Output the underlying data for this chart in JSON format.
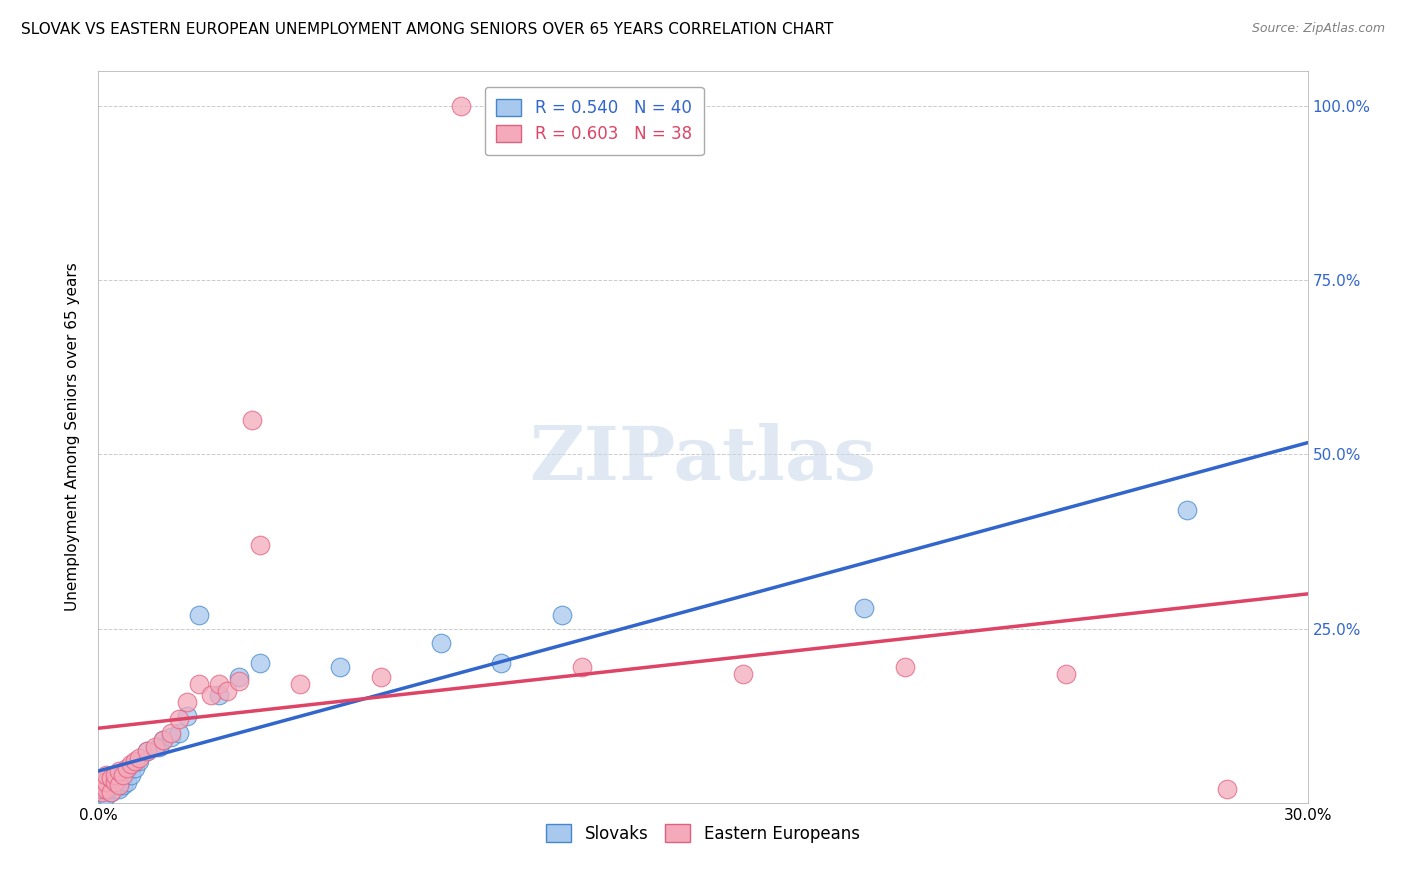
{
  "title": "SLOVAK VS EASTERN EUROPEAN UNEMPLOYMENT AMONG SENIORS OVER 65 YEARS CORRELATION CHART",
  "source": "Source: ZipAtlas.com",
  "ylabel": "Unemployment Among Seniors over 65 years",
  "xrange": [
    0.0,
    0.3
  ],
  "yrange": [
    0.0,
    1.05
  ],
  "ytick_vals": [
    0.0,
    0.25,
    0.5,
    0.75,
    1.0
  ],
  "ytick_labels_right": [
    "",
    "25.0%",
    "50.0%",
    "75.0%",
    "100.0%"
  ],
  "xtick_vals": [
    0.0,
    0.3
  ],
  "xtick_labels": [
    "0.0%",
    "30.0%"
  ],
  "blue_fill": "#A8C8EE",
  "blue_edge": "#4488CC",
  "pink_fill": "#F4AABB",
  "pink_edge": "#E06080",
  "blue_line_color": "#3366CC",
  "pink_line_color": "#DD4466",
  "grid_color": "#CCCCCC",
  "watermark_color": "#C8D8EA",
  "slovaks_x": [
    0.001,
    0.001,
    0.001,
    0.002,
    0.002,
    0.002,
    0.002,
    0.003,
    0.003,
    0.003,
    0.003,
    0.004,
    0.004,
    0.004,
    0.005,
    0.005,
    0.005,
    0.006,
    0.006,
    0.007,
    0.007,
    0.008,
    0.009,
    0.01,
    0.012,
    0.015,
    0.016,
    0.018,
    0.02,
    0.022,
    0.025,
    0.03,
    0.035,
    0.04,
    0.06,
    0.085,
    0.1,
    0.115,
    0.19,
    0.27
  ],
  "slovaks_y": [
    0.01,
    0.015,
    0.02,
    0.01,
    0.02,
    0.025,
    0.03,
    0.015,
    0.02,
    0.025,
    0.03,
    0.02,
    0.025,
    0.035,
    0.02,
    0.03,
    0.04,
    0.025,
    0.035,
    0.03,
    0.045,
    0.04,
    0.05,
    0.06,
    0.075,
    0.08,
    0.09,
    0.095,
    0.1,
    0.125,
    0.27,
    0.155,
    0.18,
    0.2,
    0.195,
    0.23,
    0.2,
    0.27,
    0.28,
    0.42
  ],
  "eastern_x": [
    0.001,
    0.001,
    0.001,
    0.002,
    0.002,
    0.002,
    0.003,
    0.003,
    0.004,
    0.004,
    0.005,
    0.005,
    0.006,
    0.007,
    0.008,
    0.009,
    0.01,
    0.012,
    0.014,
    0.016,
    0.018,
    0.02,
    0.022,
    0.025,
    0.028,
    0.03,
    0.032,
    0.035,
    0.038,
    0.04,
    0.05,
    0.07,
    0.09,
    0.12,
    0.16,
    0.2,
    0.24,
    0.28
  ],
  "eastern_y": [
    0.015,
    0.02,
    0.03,
    0.02,
    0.03,
    0.04,
    0.015,
    0.035,
    0.03,
    0.04,
    0.025,
    0.045,
    0.04,
    0.05,
    0.055,
    0.06,
    0.065,
    0.075,
    0.08,
    0.09,
    0.1,
    0.12,
    0.145,
    0.17,
    0.155,
    0.17,
    0.16,
    0.175,
    0.55,
    0.37,
    0.17,
    0.18,
    1.0,
    0.195,
    0.185,
    0.195,
    0.185,
    0.02
  ]
}
